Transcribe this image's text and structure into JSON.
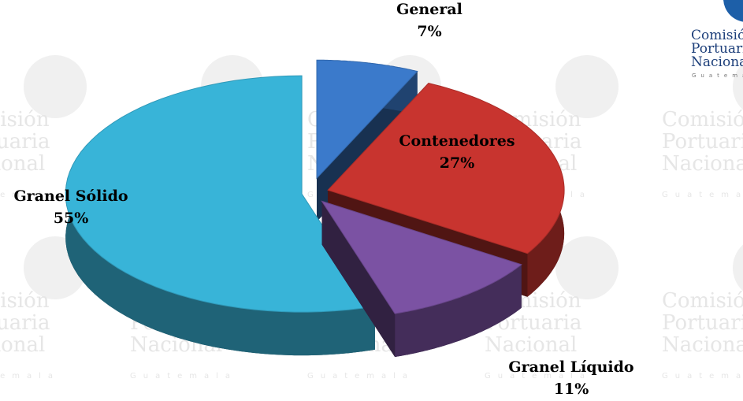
{
  "chart_data": {
    "type": "pie3d",
    "categories": [
      "General",
      "Contenedores",
      "Granel Líquido",
      "Granel Sólido"
    ],
    "values": [
      7,
      27,
      11,
      55
    ],
    "value_labels": [
      "7%",
      "27%",
      "11%",
      "55%"
    ],
    "colors": [
      "#3b7acb",
      "#c8342f",
      "#7b52a3",
      "#38b4d8"
    ]
  },
  "logo": [
    "Comisión",
    "Portuaria",
    "Nacional",
    "Guatemala"
  ],
  "watermark": [
    "Comisión",
    "Portuaria",
    "Nacional",
    "Guatemala"
  ]
}
